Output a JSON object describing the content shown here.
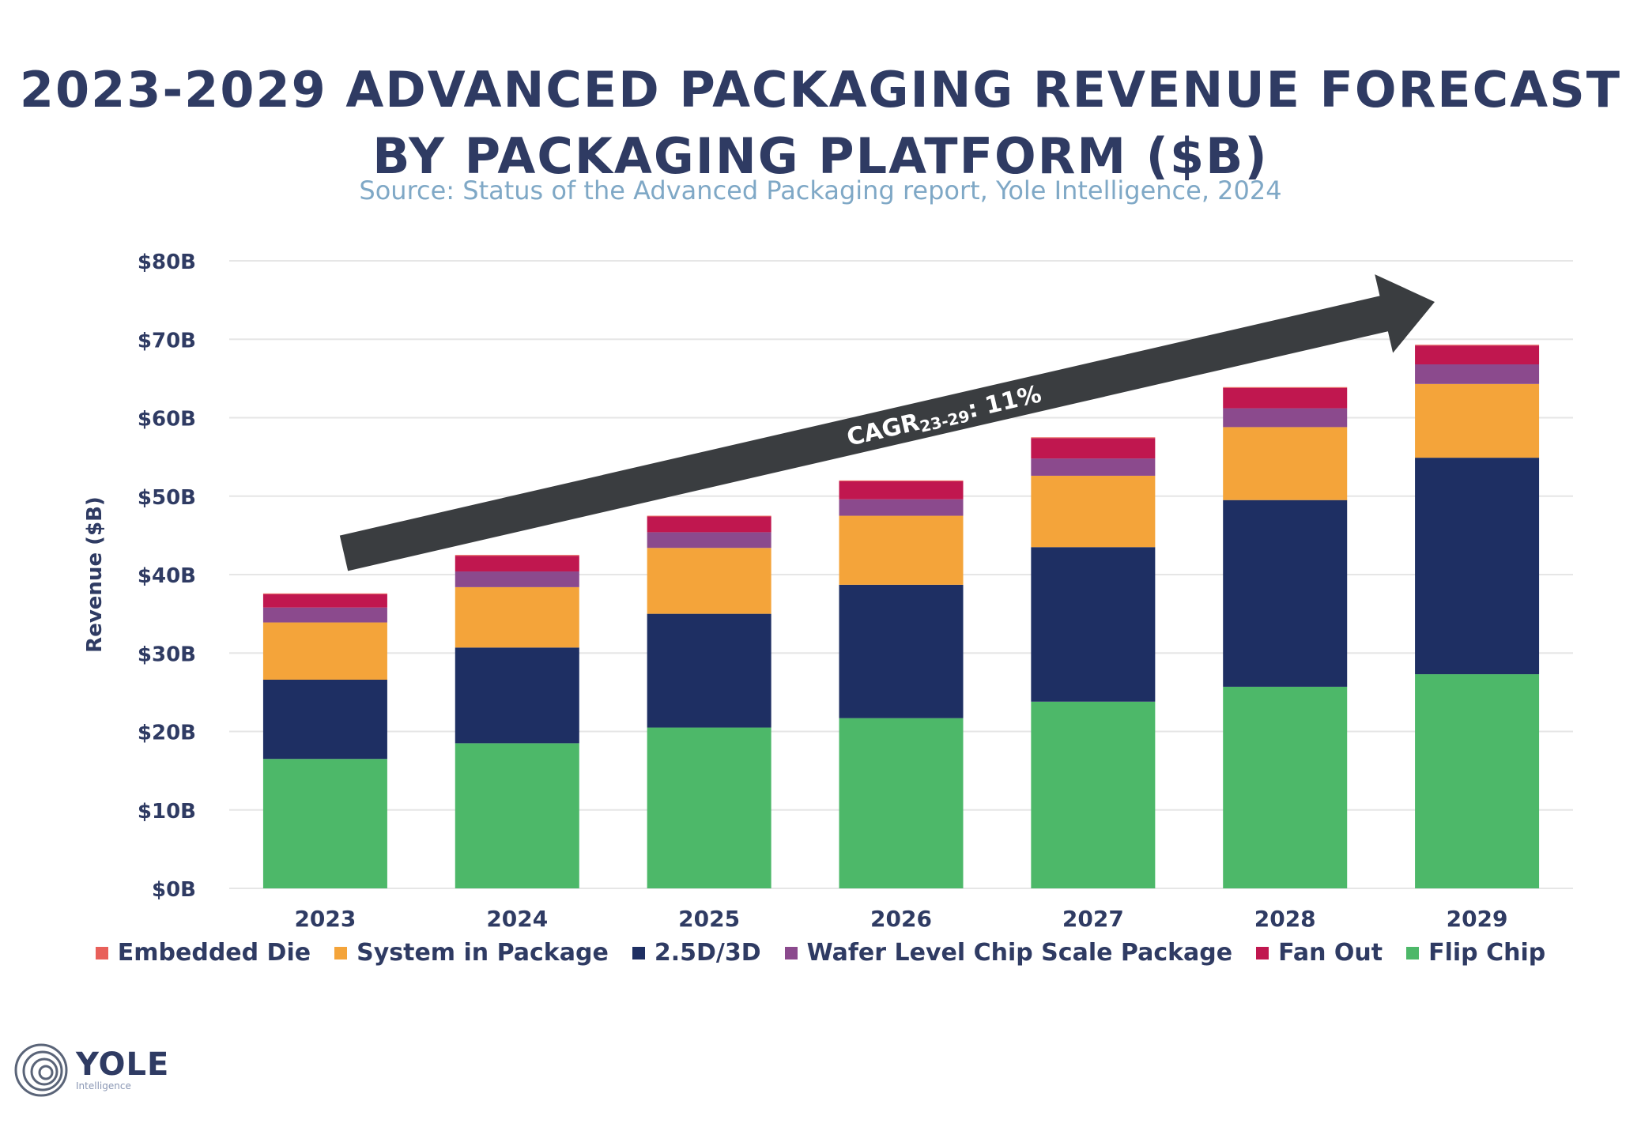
{
  "chart_data": {
    "type": "bar",
    "stacked": true,
    "title": "2023-2029 ADVANCED PACKAGING REVENUE FORECAST BY PACKAGING PLATFORM ($B)",
    "title_lines": [
      "2023-2029 ADVANCED PACKAGING REVENUE FORECAST",
      "BY PACKAGING PLATFORM ($B)"
    ],
    "subtitle": "Source: Status of the Advanced Packaging report, Yole Intelligence, 2024",
    "xlabel": "",
    "ylabel": "Revenue ($B)",
    "ylim": [
      0,
      80
    ],
    "yticks": [
      0,
      10,
      20,
      30,
      40,
      50,
      60,
      70,
      80
    ],
    "ytick_labels": [
      "$0B",
      "$10B",
      "$20B",
      "$30B",
      "$40B",
      "$50B",
      "$60B",
      "$70B",
      "$80B"
    ],
    "categories": [
      "2023",
      "2024",
      "2025",
      "2026",
      "2027",
      "2028",
      "2029"
    ],
    "grid": true,
    "legend_position": "bottom",
    "series": [
      {
        "name": "Flip Chip",
        "color": "#4db869",
        "values": [
          16.5,
          18.5,
          20.5,
          21.7,
          23.8,
          25.7,
          27.3
        ]
      },
      {
        "name": "2.5D/3D",
        "color": "#1e2f63",
        "values": [
          10.1,
          12.2,
          14.5,
          17.0,
          19.7,
          23.8,
          27.6
        ]
      },
      {
        "name": "System in Package",
        "color": "#f4a43a",
        "values": [
          7.3,
          7.7,
          8.4,
          8.8,
          9.1,
          9.3,
          9.4
        ]
      },
      {
        "name": "Wafer Level Chip Scale Package",
        "color": "#8b4a8d",
        "values": [
          1.9,
          2.0,
          2.0,
          2.1,
          2.2,
          2.4,
          2.5
        ]
      },
      {
        "name": "Fan Out",
        "color": "#c0174f",
        "values": [
          1.7,
          2.0,
          2.0,
          2.3,
          2.6,
          2.6,
          2.4
        ]
      },
      {
        "name": "Embedded Die",
        "color": "#e8605a",
        "values": [
          0.1,
          0.1,
          0.1,
          0.1,
          0.1,
          0.1,
          0.1
        ]
      }
    ],
    "legend_order": [
      "Embedded Die",
      "System in Package",
      "2.5D/3D",
      "Wafer Level Chip Scale Package",
      "Fan Out",
      "Flip Chip"
    ],
    "annotation": {
      "prefix": "CAGR",
      "subscript": "23-29",
      "suffix": ": 11%"
    },
    "colors": {
      "title": "#2f3b63",
      "subtitle": "#7fa8c6",
      "grid": "#e6e6e6",
      "arrow": "#3a3d40",
      "axis_text": "#2f3b63"
    }
  },
  "logo": {
    "name": "YOLE",
    "sub": "Intelligence"
  }
}
